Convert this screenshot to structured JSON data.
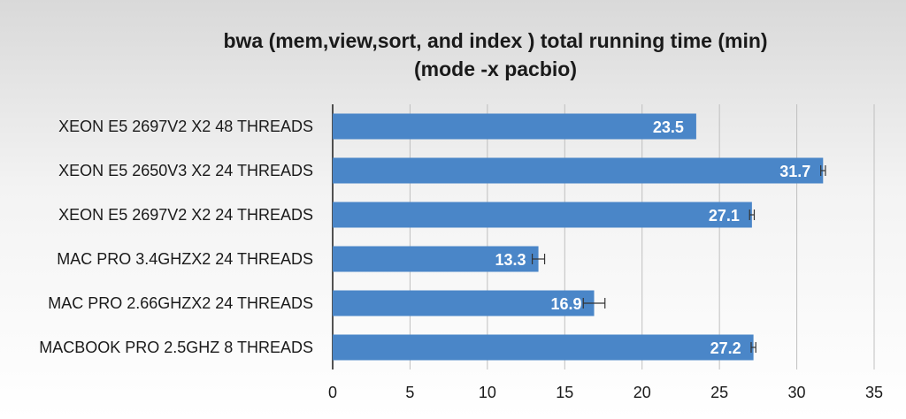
{
  "chart_data": {
    "type": "bar",
    "orientation": "horizontal",
    "title": [
      "bwa (mem,view,sort, and index ) total running time (min)",
      "(mode -x pacbio)"
    ],
    "categories": [
      "XEON E5 2697V2 X2 48 THREADS",
      "XEON E5 2650V3 X2 24 THREADS",
      "XEON E5 2697V2 X2 24 THREADS",
      "MAC PRO 3.4GHZX2 24 THREADS",
      "MAC PRO 2.66GHZX2 24 THREADS",
      "MACBOOK PRO 2.5GHZ 8 THREADS"
    ],
    "values": [
      23.5,
      31.7,
      27.1,
      13.3,
      16.9,
      27.2
    ],
    "data_labels": [
      "23.5",
      "31.7",
      "27.1",
      "13.3",
      "16.9",
      "27.2"
    ],
    "error": [
      0,
      0.15,
      0.15,
      0.4,
      0.7,
      0.15
    ],
    "xlim": [
      0,
      35
    ],
    "xticks": [
      0,
      5,
      10,
      15,
      20,
      25,
      30,
      35
    ],
    "grid": true,
    "legend": "none",
    "bar_color": "#4a86c8"
  }
}
